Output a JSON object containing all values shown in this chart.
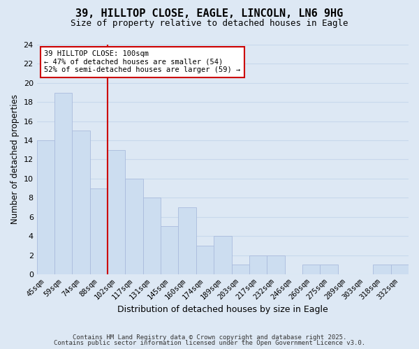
{
  "title": "39, HILLTOP CLOSE, EAGLE, LINCOLN, LN6 9HG",
  "subtitle": "Size of property relative to detached houses in Eagle",
  "xlabel": "Distribution of detached houses by size in Eagle",
  "ylabel": "Number of detached properties",
  "categories": [
    "45sqm",
    "59sqm",
    "74sqm",
    "88sqm",
    "102sqm",
    "117sqm",
    "131sqm",
    "145sqm",
    "160sqm",
    "174sqm",
    "189sqm",
    "203sqm",
    "217sqm",
    "232sqm",
    "246sqm",
    "260sqm",
    "275sqm",
    "289sqm",
    "303sqm",
    "318sqm",
    "332sqm"
  ],
  "values": [
    14,
    19,
    15,
    9,
    13,
    10,
    8,
    5,
    7,
    3,
    4,
    1,
    2,
    2,
    0,
    1,
    1,
    0,
    0,
    1,
    1
  ],
  "bar_color": "#ccddf0",
  "bar_edge_color": "#aabbdd",
  "vline_color": "#cc0000",
  "annotation_line1": "39 HILLTOP CLOSE: 100sqm",
  "annotation_line2": "← 47% of detached houses are smaller (54)",
  "annotation_line3": "52% of semi-detached houses are larger (59) →",
  "annotation_box_color": "#ffffff",
  "annotation_box_edge_color": "#cc0000",
  "ylim": [
    0,
    24
  ],
  "yticks": [
    0,
    2,
    4,
    6,
    8,
    10,
    12,
    14,
    16,
    18,
    20,
    22,
    24
  ],
  "grid_color": "#c8d8ec",
  "background_color": "#dde8f4",
  "footnote1": "Contains HM Land Registry data © Crown copyright and database right 2025.",
  "footnote2": "Contains public sector information licensed under the Open Government Licence v3.0."
}
